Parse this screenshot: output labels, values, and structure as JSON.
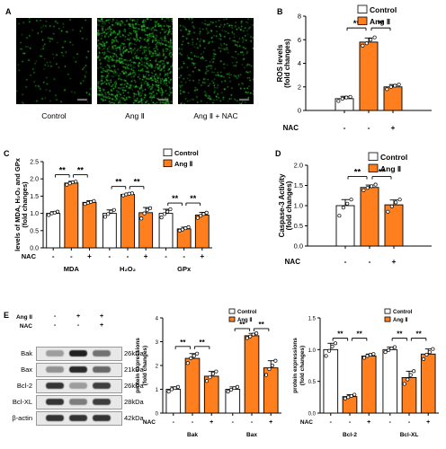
{
  "panels": {
    "A": {
      "label": "A",
      "images": [
        {
          "caption": "Control",
          "density": 0.12
        },
        {
          "caption": "Ang Ⅱ",
          "density": 1.0
        },
        {
          "caption": "Ang Ⅱ + NAC",
          "density": 0.35
        }
      ],
      "fluor_color": "#3cff3c"
    },
    "E_blot": {
      "label": "E",
      "treatments": [
        {
          "name": "Ang II",
          "signs": [
            "-",
            "+",
            "+"
          ]
        },
        {
          "name": "NAC",
          "signs": [
            "-",
            "-",
            "+"
          ]
        }
      ],
      "rows": [
        {
          "name": "Bak",
          "size": "26kDa",
          "intensity": [
            0.35,
            0.95,
            0.55
          ]
        },
        {
          "name": "Bax",
          "size": "21kDa",
          "intensity": [
            0.4,
            0.9,
            0.6
          ]
        },
        {
          "name": "Bcl-2",
          "size": "26kDa",
          "intensity": [
            0.85,
            0.35,
            0.8
          ]
        },
        {
          "name": "Bcl-XL",
          "size": "28kDa",
          "intensity": [
            0.85,
            0.5,
            0.8
          ]
        },
        {
          "name": "β-actin",
          "size": "42kDa",
          "intensity": [
            0.85,
            0.85,
            0.85
          ]
        }
      ]
    }
  },
  "colors": {
    "control": "#ffffff",
    "ang": "#ff7f1e",
    "stroke": "#000000",
    "dot": "#ffffff"
  },
  "chart_data": [
    {
      "id": "B",
      "panel_label": "B",
      "type": "bar",
      "ylabel": "ROS levels",
      "ylabel2": "(fold changes)",
      "ylim": [
        0,
        8
      ],
      "yticks": [
        "0",
        "2",
        "4",
        "6",
        "8"
      ],
      "legend": [
        {
          "name": "Control",
          "color": "#ffffff"
        },
        {
          "name": "Ang Ⅱ",
          "color": "#ff7f1e"
        }
      ],
      "treatment_label": "NAC",
      "groups": [
        {
          "name": "",
          "bars": [
            {
              "value": 1.0,
              "err": 0.2,
              "color": "#ffffff",
              "sign": "-",
              "points": [
                0.8,
                1.0,
                1.1,
                1.15
              ]
            },
            {
              "value": 5.8,
              "err": 0.35,
              "color": "#ff7f1e",
              "sign": "-",
              "points": [
                5.5,
                5.7,
                6.0,
                6.2
              ]
            },
            {
              "value": 2.0,
              "err": 0.2,
              "color": "#ff7f1e",
              "sign": "+",
              "points": [
                1.8,
                2.0,
                2.1,
                2.2
              ]
            }
          ]
        }
      ],
      "sig": [
        {
          "from": 0,
          "to": 1,
          "label": "**",
          "y": 7.0
        },
        {
          "from": 1,
          "to": 2,
          "label": "**",
          "y": 7.0
        }
      ]
    },
    {
      "id": "C",
      "panel_label": "C",
      "type": "bar",
      "ylabel": "levels of MDA, H₂O₂ and GPx",
      "ylabel2": "(fold changes)",
      "ylim": [
        0,
        2.5
      ],
      "yticks": [
        "0.0",
        "0.5",
        "1.0",
        "1.5",
        "2.0",
        "2.5"
      ],
      "legend": [
        {
          "name": "Control",
          "color": "#ffffff"
        },
        {
          "name": "Ang Ⅱ",
          "color": "#ff7f1e"
        }
      ],
      "treatment_label": "NAC",
      "groups": [
        {
          "name": "MDA",
          "bars": [
            {
              "value": 1.0,
              "err": 0.05,
              "color": "#ffffff",
              "sign": "-",
              "points": [
                0.95,
                1.0,
                1.02,
                1.05
              ]
            },
            {
              "value": 1.88,
              "err": 0.05,
              "color": "#ff7f1e",
              "sign": "-",
              "points": [
                1.83,
                1.87,
                1.9,
                1.92
              ]
            },
            {
              "value": 1.32,
              "err": 0.05,
              "color": "#ff7f1e",
              "sign": "+",
              "points": [
                1.27,
                1.3,
                1.33,
                1.36
              ]
            }
          ]
        },
        {
          "name": "H₂O₂",
          "bars": [
            {
              "value": 1.0,
              "err": 0.1,
              "color": "#ffffff",
              "sign": "-",
              "points": [
                0.9,
                0.98,
                1.05,
                1.1
              ]
            },
            {
              "value": 1.55,
              "err": 0.03,
              "color": "#ff7f1e",
              "sign": "-",
              "points": [
                1.52,
                1.55,
                1.57,
                1.58
              ]
            },
            {
              "value": 1.02,
              "err": 0.15,
              "color": "#ff7f1e",
              "sign": "+",
              "points": [
                0.85,
                1.0,
                1.1,
                1.15
              ]
            }
          ]
        },
        {
          "name": "GPx",
          "bars": [
            {
              "value": 1.0,
              "err": 0.12,
              "color": "#ffffff",
              "sign": "-",
              "points": [
                0.88,
                0.98,
                1.05,
                1.12
              ]
            },
            {
              "value": 0.55,
              "err": 0.05,
              "color": "#ff7f1e",
              "sign": "-",
              "points": [
                0.5,
                0.53,
                0.57,
                0.6
              ]
            },
            {
              "value": 0.95,
              "err": 0.08,
              "color": "#ff7f1e",
              "sign": "+",
              "points": [
                0.87,
                0.93,
                0.98,
                1.02
              ]
            }
          ]
        }
      ],
      "sig": [
        {
          "group": 0,
          "from": 0,
          "to": 1,
          "label": "**",
          "y": 2.12
        },
        {
          "group": 0,
          "from": 1,
          "to": 2,
          "label": "**",
          "y": 2.12
        },
        {
          "group": 1,
          "from": 0,
          "to": 1,
          "label": "**",
          "y": 1.78
        },
        {
          "group": 1,
          "from": 1,
          "to": 2,
          "label": "**",
          "y": 1.78
        },
        {
          "group": 2,
          "from": 0,
          "to": 1,
          "label": "**",
          "y": 1.3
        },
        {
          "group": 2,
          "from": 1,
          "to": 2,
          "label": "**",
          "y": 1.3
        }
      ]
    },
    {
      "id": "D",
      "panel_label": "D",
      "type": "bar",
      "ylabel": "Caspase-3 Activity",
      "ylabel2": "(fold changes)",
      "ylim": [
        0,
        2.0
      ],
      "yticks": [
        "0.0",
        "0.5",
        "1.0",
        "1.5",
        "2.0"
      ],
      "legend": [
        {
          "name": "Control",
          "color": "#ffffff"
        },
        {
          "name": "Ang Ⅱ",
          "color": "#ff7f1e"
        }
      ],
      "treatment_label": "NAC",
      "groups": [
        {
          "name": "",
          "bars": [
            {
              "value": 1.0,
              "err": 0.15,
              "color": "#ffffff",
              "sign": "-",
              "points": [
                0.75,
                0.95,
                1.05,
                1.15
              ]
            },
            {
              "value": 1.45,
              "err": 0.06,
              "color": "#ff7f1e",
              "sign": "-",
              "points": [
                1.38,
                1.44,
                1.48,
                1.52
              ]
            },
            {
              "value": 1.02,
              "err": 0.12,
              "color": "#ff7f1e",
              "sign": "+",
              "points": [
                0.85,
                0.98,
                1.08,
                1.15
              ]
            }
          ]
        }
      ],
      "sig": [
        {
          "from": 0,
          "to": 1,
          "label": "**",
          "y": 1.72
        },
        {
          "from": 1,
          "to": 2,
          "label": "**",
          "y": 1.72
        }
      ]
    },
    {
      "id": "E1",
      "panel_label": "",
      "type": "bar",
      "ylabel": "protein expressions",
      "ylabel2": "(fold changes)",
      "ylim": [
        0,
        4
      ],
      "yticks": [
        "0",
        "1",
        "2",
        "3",
        "4"
      ],
      "legend": [
        {
          "name": "Control",
          "color": "#ffffff"
        },
        {
          "name": "Ang Ⅱ",
          "color": "#ff7f1e"
        }
      ],
      "treatment_label": "NAC",
      "groups": [
        {
          "name": "Bak",
          "bars": [
            {
              "value": 1.0,
              "err": 0.1,
              "color": "#ffffff",
              "sign": "-",
              "points": [
                0.9,
                1.0,
                1.05,
                1.1
              ]
            },
            {
              "value": 2.3,
              "err": 0.2,
              "color": "#ff7f1e",
              "sign": "-",
              "points": [
                2.1,
                2.3,
                2.4,
                2.5
              ]
            },
            {
              "value": 1.55,
              "err": 0.2,
              "color": "#ff7f1e",
              "sign": "+",
              "points": [
                1.35,
                1.5,
                1.65,
                1.75
              ]
            }
          ]
        },
        {
          "name": "Bax",
          "bars": [
            {
              "value": 1.0,
              "err": 0.1,
              "color": "#ffffff",
              "sign": "-",
              "points": [
                0.9,
                0.98,
                1.05,
                1.1
              ]
            },
            {
              "value": 3.25,
              "err": 0.1,
              "color": "#ff7f1e",
              "sign": "-",
              "points": [
                3.15,
                3.22,
                3.3,
                3.35
              ]
            },
            {
              "value": 1.9,
              "err": 0.3,
              "color": "#ff7f1e",
              "sign": "+",
              "points": [
                1.6,
                1.85,
                2.0,
                2.2
              ]
            }
          ]
        }
      ],
      "sig": [
        {
          "group": 0,
          "from": 0,
          "to": 1,
          "label": "**",
          "y": 2.8
        },
        {
          "group": 0,
          "from": 1,
          "to": 2,
          "label": "**",
          "y": 2.8
        },
        {
          "group": 1,
          "from": 0,
          "to": 1,
          "label": "**",
          "y": 3.55
        },
        {
          "group": 1,
          "from": 1,
          "to": 2,
          "label": "**",
          "y": 3.55
        }
      ]
    },
    {
      "id": "E2",
      "panel_label": "",
      "type": "bar",
      "ylabel": "protein expressions",
      "ylabel2": "(fold changes)",
      "ylim": [
        0,
        1.5
      ],
      "yticks": [
        "0.0",
        "0.5",
        "1.0",
        "1.5"
      ],
      "legend": [
        {
          "name": "Control",
          "color": "#ffffff"
        },
        {
          "name": "Ang Ⅱ",
          "color": "#ff7f1e"
        }
      ],
      "treatment_label": "NAC",
      "groups": [
        {
          "name": "Bcl-2",
          "bars": [
            {
              "value": 1.0,
              "err": 0.1,
              "color": "#ffffff",
              "sign": "-",
              "points": [
                0.9,
                0.98,
                1.05,
                1.1
              ]
            },
            {
              "value": 0.26,
              "err": 0.03,
              "color": "#ff7f1e",
              "sign": "-",
              "points": [
                0.23,
                0.25,
                0.27,
                0.29
              ]
            },
            {
              "value": 0.9,
              "err": 0.03,
              "color": "#ff7f1e",
              "sign": "+",
              "points": [
                0.87,
                0.9,
                0.92,
                0.93
              ]
            }
          ]
        },
        {
          "name": "Bcl-XL",
          "bars": [
            {
              "value": 1.0,
              "err": 0.04,
              "color": "#ffffff",
              "sign": "-",
              "points": [
                0.96,
                0.99,
                1.02,
                1.04
              ]
            },
            {
              "value": 0.56,
              "err": 0.1,
              "color": "#ff7f1e",
              "sign": "-",
              "points": [
                0.46,
                0.53,
                0.6,
                0.66
              ]
            },
            {
              "value": 0.93,
              "err": 0.08,
              "color": "#ff7f1e",
              "sign": "+",
              "points": [
                0.85,
                0.92,
                0.96,
                1.01
              ]
            }
          ]
        }
      ],
      "sig": [
        {
          "group": 0,
          "from": 0,
          "to": 1,
          "label": "**",
          "y": 1.18
        },
        {
          "group": 0,
          "from": 1,
          "to": 2,
          "label": "**",
          "y": 1.18
        },
        {
          "group": 1,
          "from": 0,
          "to": 1,
          "label": "**",
          "y": 1.18
        },
        {
          "group": 1,
          "from": 1,
          "to": 2,
          "label": "**",
          "y": 1.18
        }
      ]
    }
  ]
}
